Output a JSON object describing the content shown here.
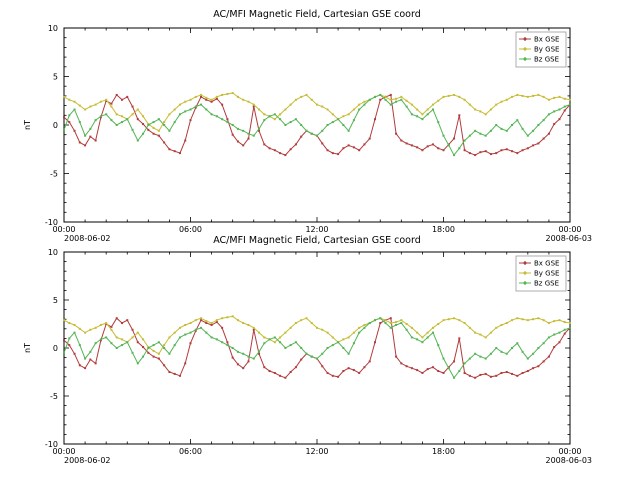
{
  "page": {
    "background": "#ffffff"
  },
  "chart_data": [
    {
      "type": "line",
      "title": "AC/MFI Magnetic Field, Cartesian GSE coord",
      "ylabel": "nT",
      "ylim": [
        -10,
        10
      ],
      "yticks": [
        -10,
        -5,
        0,
        5,
        10
      ],
      "ytick_labels": [
        "-10",
        "-5",
        "0",
        "5",
        "10"
      ],
      "ytick_minor_step": 1,
      "x_step_hours": 0.25,
      "xticks_hours": [
        0,
        6,
        12,
        18,
        24
      ],
      "xtick_labels": [
        "00:00",
        "06:00",
        "12:00",
        "18:00",
        "00:00"
      ],
      "xtick_minor_step_hours": 1,
      "date_left": "2008-06-02",
      "date_right": "2008-06-03",
      "legend_position": "top-right",
      "grid": false,
      "series": [
        {
          "name": "Bx GSE",
          "color": "#b23b3b",
          "values": [
            0.8,
            0.3,
            -0.6,
            -1.8,
            -2.1,
            -1.2,
            -1.6,
            0.8,
            2.5,
            2.2,
            3.1,
            2.6,
            2.9,
            1.9,
            0.6,
            0.1,
            -0.5,
            -0.9,
            -1.1,
            -1.8,
            -2.5,
            -2.7,
            -2.9,
            -1.6,
            0.5,
            1.8,
            2.9,
            2.6,
            2.4,
            2.7,
            2.1,
            0.6,
            -1.0,
            -1.7,
            -2.1,
            -1.4,
            1.9,
            -0.6,
            -2.0,
            -2.4,
            -2.6,
            -2.9,
            -3.1,
            -2.5,
            -2.0,
            -1.2,
            -0.6,
            -0.9,
            -1.1,
            -1.9,
            -2.6,
            -2.9,
            -3.0,
            -2.4,
            -2.1,
            -2.3,
            -2.6,
            -2.0,
            -1.4,
            0.6,
            2.6,
            2.9,
            3.1,
            -0.9,
            -1.6,
            -1.9,
            -2.1,
            -2.3,
            -2.6,
            -2.2,
            -2.0,
            -2.4,
            -2.6,
            -2.0,
            -1.4,
            1.0,
            -2.6,
            -2.9,
            -3.1,
            -2.8,
            -2.7,
            -3.0,
            -2.9,
            -2.6,
            -2.5,
            -2.7,
            -2.9,
            -2.6,
            -2.4,
            -2.1,
            -1.9,
            -1.4,
            -0.9,
            0.1,
            0.6,
            1.5,
            2.1
          ]
        },
        {
          "name": "By GSE",
          "color": "#c6bc35",
          "values": [
            2.9,
            2.6,
            2.4,
            2.0,
            1.6,
            1.9,
            2.1,
            2.4,
            2.6,
            1.9,
            1.1,
            0.9,
            0.6,
            1.1,
            1.6,
            0.9,
            0.1,
            -0.3,
            -0.6,
            0.3,
            1.1,
            1.6,
            2.1,
            2.4,
            2.6,
            2.9,
            3.1,
            2.8,
            2.6,
            2.9,
            3.1,
            3.2,
            3.3,
            2.9,
            2.6,
            2.4,
            2.1,
            1.6,
            1.1,
            0.9,
            0.6,
            1.1,
            1.6,
            2.1,
            2.6,
            2.9,
            3.1,
            2.6,
            2.1,
            1.9,
            1.6,
            1.1,
            0.6,
            0.9,
            1.1,
            1.6,
            2.1,
            2.4,
            2.6,
            2.9,
            3.1,
            2.9,
            2.6,
            2.7,
            2.9,
            2.5,
            2.1,
            1.6,
            1.1,
            1.6,
            2.1,
            2.5,
            2.9,
            3.0,
            3.1,
            2.9,
            2.6,
            2.1,
            1.6,
            1.4,
            1.1,
            1.6,
            2.1,
            2.4,
            2.6,
            2.9,
            3.1,
            3.0,
            2.9,
            3.0,
            3.1,
            2.9,
            2.6,
            2.8,
            2.9,
            2.7,
            2.6
          ]
        },
        {
          "name": "Bz GSE",
          "color": "#55b455",
          "values": [
            -0.5,
            1.0,
            1.6,
            0.3,
            -1.1,
            -0.4,
            0.5,
            0.9,
            1.1,
            0.5,
            0.0,
            0.3,
            0.6,
            -0.5,
            -1.6,
            -0.9,
            0.0,
            0.3,
            0.6,
            0.0,
            -0.6,
            0.3,
            1.1,
            1.4,
            1.6,
            1.9,
            2.1,
            1.6,
            1.1,
            0.9,
            0.6,
            0.3,
            0.0,
            -0.4,
            -0.6,
            -0.9,
            -1.1,
            -0.4,
            0.5,
            0.9,
            1.1,
            0.6,
            0.0,
            0.3,
            0.6,
            0.0,
            -0.6,
            -0.9,
            -1.1,
            -0.6,
            0.0,
            0.3,
            0.6,
            0.0,
            -0.6,
            0.5,
            1.6,
            2.1,
            2.6,
            2.9,
            3.1,
            2.6,
            2.1,
            2.4,
            2.6,
            1.9,
            1.1,
            0.9,
            0.6,
            1.1,
            1.6,
            0.3,
            -1.1,
            -2.1,
            -3.1,
            -2.4,
            -1.6,
            -1.1,
            -0.6,
            -0.9,
            -1.1,
            -0.6,
            0.0,
            -0.4,
            -0.6,
            0.0,
            0.5,
            -0.4,
            -1.1,
            -0.6,
            0.0,
            0.5,
            1.1,
            1.4,
            1.6,
            1.9,
            2.1
          ]
        }
      ]
    },
    {
      "type": "line",
      "title": "AC/MFI Magnetic Field, Cartesian GSE coord",
      "ylabel": "nT",
      "ylim": [
        -10,
        10
      ],
      "yticks": [
        -10,
        -5,
        0,
        5,
        10
      ],
      "ytick_labels": [
        "-10",
        "-5",
        "0",
        "5",
        "10"
      ],
      "ytick_minor_step": 1,
      "x_step_hours": 0.25,
      "xticks_hours": [
        0,
        6,
        12,
        18,
        24
      ],
      "xtick_labels": [
        "00:00",
        "06:00",
        "12:00",
        "18:00",
        "00:00"
      ],
      "xtick_minor_step_hours": 1,
      "date_left": "2008-06-02",
      "date_right": "2008-06-03",
      "legend_position": "top-right",
      "grid": false,
      "series": [
        {
          "name": "Bx GSE",
          "color": "#b23b3b",
          "values": [
            0.8,
            0.3,
            -0.6,
            -1.8,
            -2.1,
            -1.2,
            -1.6,
            0.8,
            2.5,
            2.2,
            3.1,
            2.6,
            2.9,
            1.9,
            0.6,
            0.1,
            -0.5,
            -0.9,
            -1.1,
            -1.8,
            -2.5,
            -2.7,
            -2.9,
            -1.6,
            0.5,
            1.8,
            2.9,
            2.6,
            2.4,
            2.7,
            2.1,
            0.6,
            -1.0,
            -1.7,
            -2.1,
            -1.4,
            1.9,
            -0.6,
            -2.0,
            -2.4,
            -2.6,
            -2.9,
            -3.1,
            -2.5,
            -2.0,
            -1.2,
            -0.6,
            -0.9,
            -1.1,
            -1.9,
            -2.6,
            -2.9,
            -3.0,
            -2.4,
            -2.1,
            -2.3,
            -2.6,
            -2.0,
            -1.4,
            0.6,
            2.6,
            2.9,
            3.1,
            -0.9,
            -1.6,
            -1.9,
            -2.1,
            -2.3,
            -2.6,
            -2.2,
            -2.0,
            -2.4,
            -2.6,
            -2.0,
            -1.4,
            1.0,
            -2.6,
            -2.9,
            -3.1,
            -2.8,
            -2.7,
            -3.0,
            -2.9,
            -2.6,
            -2.5,
            -2.7,
            -2.9,
            -2.6,
            -2.4,
            -2.1,
            -1.9,
            -1.4,
            -0.9,
            0.1,
            0.6,
            1.5,
            2.1
          ]
        },
        {
          "name": "By GSE",
          "color": "#c6bc35",
          "values": [
            2.9,
            2.6,
            2.4,
            2.0,
            1.6,
            1.9,
            2.1,
            2.4,
            2.6,
            1.9,
            1.1,
            0.9,
            0.6,
            1.1,
            1.6,
            0.9,
            0.1,
            -0.3,
            -0.6,
            0.3,
            1.1,
            1.6,
            2.1,
            2.4,
            2.6,
            2.9,
            3.1,
            2.8,
            2.6,
            2.9,
            3.1,
            3.2,
            3.3,
            2.9,
            2.6,
            2.4,
            2.1,
            1.6,
            1.1,
            0.9,
            0.6,
            1.1,
            1.6,
            2.1,
            2.6,
            2.9,
            3.1,
            2.6,
            2.1,
            1.9,
            1.6,
            1.1,
            0.6,
            0.9,
            1.1,
            1.6,
            2.1,
            2.4,
            2.6,
            2.9,
            3.1,
            2.9,
            2.6,
            2.7,
            2.9,
            2.5,
            2.1,
            1.6,
            1.1,
            1.6,
            2.1,
            2.5,
            2.9,
            3.0,
            3.1,
            2.9,
            2.6,
            2.1,
            1.6,
            1.4,
            1.1,
            1.6,
            2.1,
            2.4,
            2.6,
            2.9,
            3.1,
            3.0,
            2.9,
            3.0,
            3.1,
            2.9,
            2.6,
            2.8,
            2.9,
            2.7,
            2.6
          ]
        },
        {
          "name": "Bz GSE",
          "color": "#55b455",
          "values": [
            -0.5,
            1.0,
            1.6,
            0.3,
            -1.1,
            -0.4,
            0.5,
            0.9,
            1.1,
            0.5,
            0.0,
            0.3,
            0.6,
            -0.5,
            -1.6,
            -0.9,
            0.0,
            0.3,
            0.6,
            0.0,
            -0.6,
            0.3,
            1.1,
            1.4,
            1.6,
            1.9,
            2.1,
            1.6,
            1.1,
            0.9,
            0.6,
            0.3,
            0.0,
            -0.4,
            -0.6,
            -0.9,
            -1.1,
            -0.4,
            0.5,
            0.9,
            1.1,
            0.6,
            0.0,
            0.3,
            0.6,
            0.0,
            -0.6,
            -0.9,
            -1.1,
            -0.6,
            0.0,
            0.3,
            0.6,
            0.0,
            -0.6,
            0.5,
            1.6,
            2.1,
            2.6,
            2.9,
            3.1,
            2.6,
            2.1,
            2.4,
            2.6,
            1.9,
            1.1,
            0.9,
            0.6,
            1.1,
            1.6,
            0.3,
            -1.1,
            -2.1,
            -3.1,
            -2.4,
            -1.6,
            -1.1,
            -0.6,
            -0.9,
            -1.1,
            -0.6,
            0.0,
            -0.4,
            -0.6,
            0.0,
            0.5,
            -0.4,
            -1.1,
            -0.6,
            0.0,
            0.5,
            1.1,
            1.4,
            1.6,
            1.9,
            2.1
          ]
        }
      ]
    }
  ]
}
